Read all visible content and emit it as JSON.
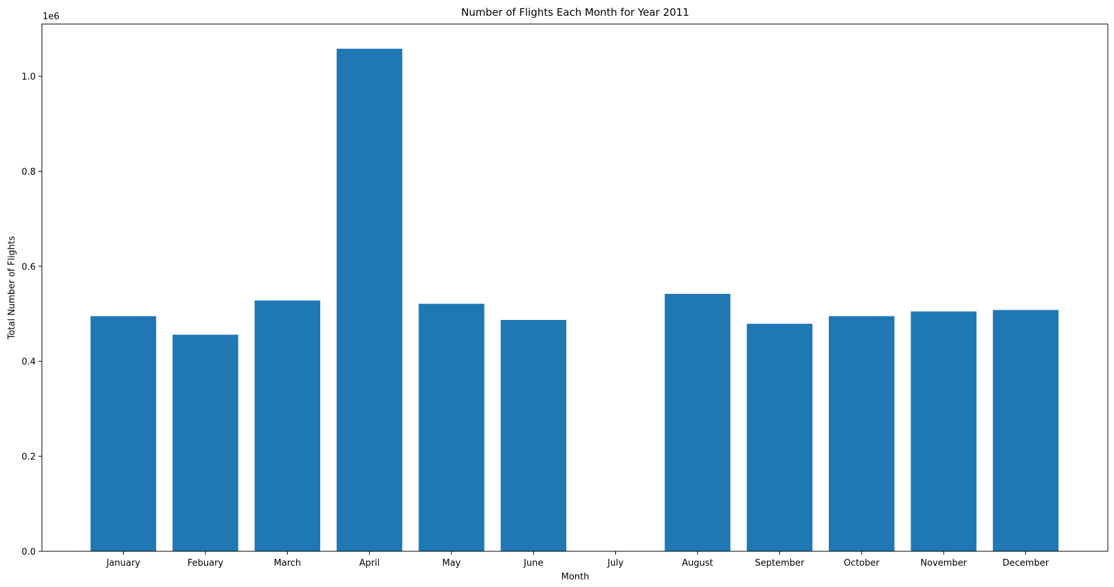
{
  "chart_data": {
    "type": "bar",
    "title": "Number of Flights Each Month for Year 2011",
    "xlabel": "Month",
    "ylabel": "Total Number of Flights",
    "offset_label": "1e6",
    "categories": [
      "January",
      "Febuary",
      "March",
      "April",
      "May",
      "June",
      "July",
      "August",
      "September",
      "October",
      "November",
      "December"
    ],
    "values": [
      495000,
      456000,
      528000,
      1058000,
      521000,
      487000,
      0,
      542000,
      479000,
      495000,
      505000,
      508000
    ],
    "ylim": [
      0,
      1.11
    ],
    "y_ticks": [
      0.0,
      0.2,
      0.4,
      0.6,
      0.8,
      1.0
    ],
    "y_tick_labels": [
      "0.0",
      "0.2",
      "0.4",
      "0.6",
      "0.8",
      "1.0"
    ],
    "grid": false,
    "legend": "none",
    "bar_color": "#1f77b4"
  }
}
